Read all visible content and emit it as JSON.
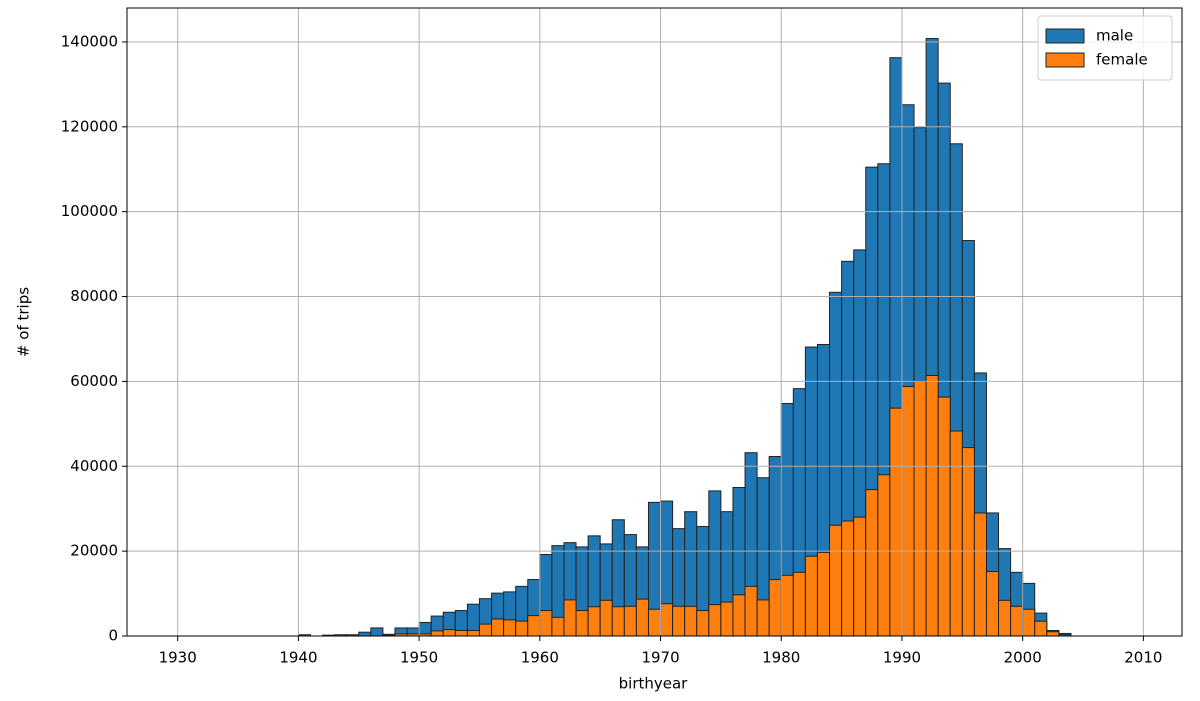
{
  "chart_data": {
    "type": "histogram",
    "xlabel": "birthyear",
    "ylabel": "# of trips",
    "bins": [
      1940,
      1941,
      1942,
      1943,
      1944,
      1945,
      1946,
      1947,
      1948,
      1949,
      1950,
      1951,
      1952,
      1953,
      1954,
      1955,
      1956,
      1957,
      1958,
      1959,
      1960,
      1961,
      1962,
      1963,
      1964,
      1965,
      1966,
      1967,
      1968,
      1969,
      1970,
      1971,
      1972,
      1973,
      1974,
      1975,
      1976,
      1977,
      1978,
      1979,
      1980,
      1981,
      1982,
      1983,
      1984,
      1985,
      1986,
      1987,
      1988,
      1989,
      1990,
      1991,
      1992,
      1993,
      1994,
      1995,
      1996,
      1997,
      1998,
      1999,
      2000,
      2001,
      2002,
      2003,
      2004
    ],
    "series": [
      {
        "name": "male",
        "color": "#1f77b4",
        "values": [
          300,
          0,
          200,
          300,
          300,
          900,
          1900,
          400,
          1900,
          1900,
          3200,
          4700,
          5600,
          6000,
          7500,
          8800,
          10100,
          10400,
          11700,
          13300,
          19200,
          21300,
          22000,
          21000,
          23600,
          21700,
          27400,
          23900,
          21000,
          31500,
          31800,
          25300,
          29300,
          25800,
          34200,
          29300,
          35000,
          43200,
          37300,
          42300,
          54800,
          58300,
          68100,
          68700,
          81000,
          88300,
          91000,
          110500,
          111300,
          136300,
          125200,
          119800,
          140800,
          130300,
          116000,
          93200,
          62000,
          29000,
          20600,
          15000,
          12400,
          5400,
          1300,
          600
        ]
      },
      {
        "name": "female",
        "color": "#ff7f0e",
        "values": [
          0,
          0,
          0,
          0,
          0,
          0,
          0,
          200,
          500,
          500,
          500,
          1200,
          1500,
          1300,
          1300,
          2800,
          4000,
          3800,
          3500,
          4800,
          6000,
          4400,
          8500,
          6000,
          6900,
          8400,
          6900,
          7000,
          8700,
          6300,
          7600,
          7000,
          7000,
          6000,
          7400,
          8000,
          9700,
          11700,
          8500,
          13300,
          14300,
          15000,
          18800,
          19700,
          26100,
          27100,
          28000,
          34500,
          38000,
          53700,
          58800,
          60000,
          61400,
          56300,
          48300,
          44400,
          29000,
          15200,
          8400,
          7000,
          6300,
          3500,
          1000,
          300
        ]
      }
    ],
    "xlim": [
      1925.8,
      2013.2
    ],
    "ylim": [
      0,
      148000
    ],
    "xticks": [
      1930,
      1940,
      1950,
      1960,
      1970,
      1980,
      1990,
      2000,
      2010
    ],
    "yticks": [
      0,
      20000,
      40000,
      60000,
      80000,
      100000,
      120000,
      140000
    ],
    "grid": true,
    "legend": "upper right"
  }
}
